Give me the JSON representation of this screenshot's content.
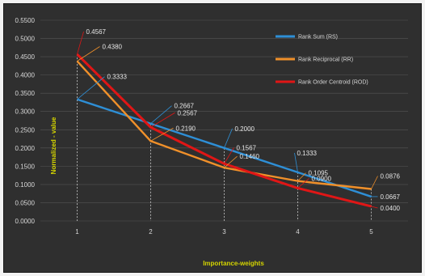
{
  "chart_data": {
    "type": "line",
    "x": [
      1,
      2,
      3,
      4,
      5
    ],
    "xlabel": "Importance-weights",
    "ylabel": "Normalized - value",
    "ylim": [
      0,
      0.55
    ],
    "yticks": [
      "0.0000",
      "0.0500",
      "0.1000",
      "0.1500",
      "0.2000",
      "0.2500",
      "0.3000",
      "0.3500",
      "0.4000",
      "0.4500",
      "0.5000",
      "0.5500"
    ],
    "grid": true,
    "legend_position": "top-right",
    "series": [
      {
        "name": "Rank Sum (RS)",
        "color": "#2e8fd6",
        "values": [
          0.3333,
          0.2667,
          0.2,
          0.1333,
          0.0667
        ],
        "labels": [
          "0.3333",
          "0.2667",
          "0.2000",
          "0.1333",
          "0.0667"
        ]
      },
      {
        "name": "Rank Reciprocal (RR)",
        "color": "#f0902a",
        "values": [
          0.438,
          0.219,
          0.146,
          0.1095,
          0.0876
        ],
        "labels": [
          "0.4380",
          "0.2190",
          "0.1460",
          "0.1095",
          "0.0876"
        ]
      },
      {
        "name": "Rank Order Centroid (ROD)",
        "color": "#e01616",
        "values": [
          0.4567,
          0.2567,
          0.1567,
          0.09,
          0.04
        ],
        "labels": [
          "0.4567",
          "0.2567",
          "0.1567",
          "0.0900",
          "0.0400"
        ]
      }
    ]
  }
}
